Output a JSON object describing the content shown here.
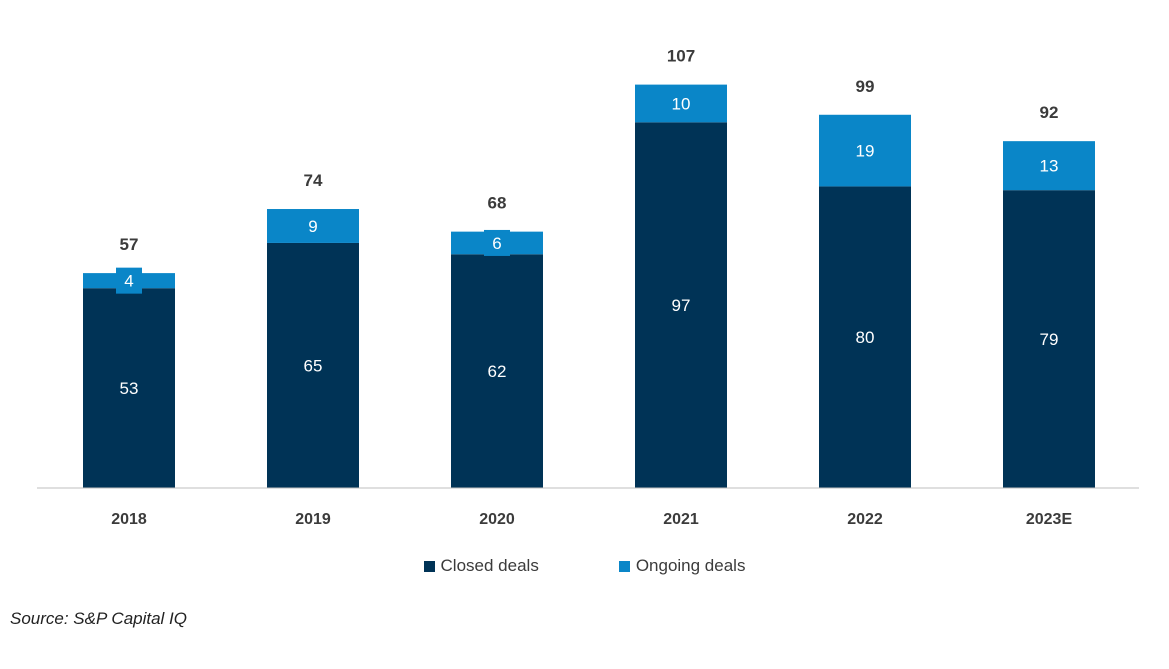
{
  "chart_data": {
    "type": "bar",
    "stacked": true,
    "categories": [
      "2018",
      "2019",
      "2020",
      "2021",
      "2022",
      "2023E"
    ],
    "series": [
      {
        "name": "Closed deals",
        "values": [
          53,
          65,
          62,
          97,
          80,
          79
        ],
        "color": "#003356"
      },
      {
        "name": "Ongoing deals",
        "values": [
          4,
          9,
          6,
          10,
          19,
          13
        ],
        "color": "#0a86c8"
      }
    ],
    "totals": [
      57,
      74,
      68,
      107,
      99,
      92
    ],
    "legend_position": "bottom",
    "grid": false
  },
  "legend": {
    "closed_label": "Closed deals",
    "ongoing_label": "Ongoing deals"
  },
  "source_text": "Source: S&P Capital IQ"
}
